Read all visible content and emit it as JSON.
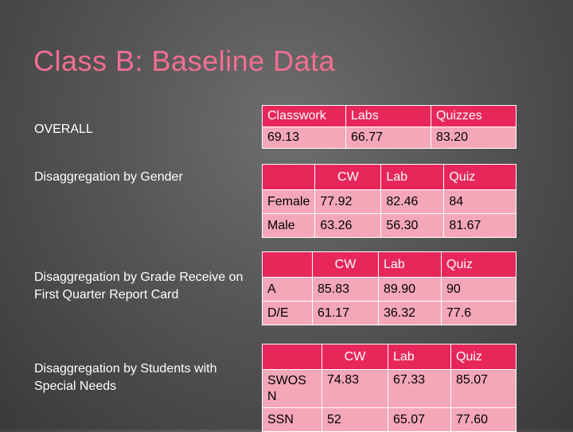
{
  "title": "Class B: Baseline Data",
  "labels": {
    "overall": "OVERALL",
    "gender": "Disaggregation by Gender",
    "grade": "Disaggregation by Grade Receive on First Quarter Report Card",
    "special": "Disaggregation by Students with Special Needs"
  },
  "overall_table": {
    "headers": [
      "Classwork",
      "Labs",
      "Quizzes"
    ],
    "values": [
      "69.13",
      "66.77",
      "83.20"
    ]
  },
  "gender_table": {
    "headers": [
      "",
      "CW",
      "Lab",
      "Quiz"
    ],
    "rows": [
      [
        "Female",
        "77.92",
        "82.46",
        "84"
      ],
      [
        "Male",
        "63.26",
        "56.30",
        "81.67"
      ]
    ]
  },
  "grade_table": {
    "headers": [
      "",
      "CW",
      "Lab",
      "Quiz"
    ],
    "rows": [
      [
        "A",
        "85.83",
        "89.90",
        "90"
      ],
      [
        "D/E",
        "61.17",
        "36.32",
        "77.6"
      ]
    ]
  },
  "special_table": {
    "headers": [
      "",
      "CW",
      "Lab",
      "Quiz"
    ],
    "rows": [
      [
        "SWOS N",
        "74.83",
        "67.33",
        "85.07"
      ],
      [
        "SSN",
        "52",
        "65.07",
        "77.60"
      ]
    ]
  },
  "colors": {
    "title": "#f26e93",
    "header_fill": "#e7275a",
    "cell_fill": "#f4a7b9",
    "background": "#555555"
  }
}
